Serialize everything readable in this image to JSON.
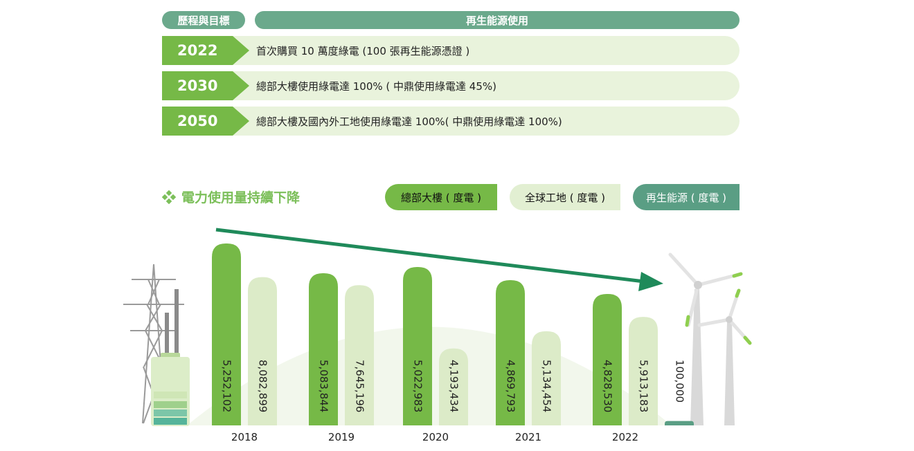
{
  "table": {
    "header_left": "歷程與目標",
    "header_right": "再生能源使用",
    "rows": [
      {
        "year": "2022",
        "text": "首次購買 10 萬度綠電 (100 張再生能源憑證 )"
      },
      {
        "year": "2030",
        "text": "總部大樓使用綠電達 100% ( 中鼎使用綠電達 45%)"
      },
      {
        "year": "2050",
        "text": "總部大樓及國內外工地使用綠電達 100%( 中鼎使用綠電達 100%)"
      }
    ]
  },
  "section_title": "電力使用量持續下降",
  "colors": {
    "hq": "#76b947",
    "site": "#dcebc8",
    "renewable": "#5a9e84",
    "arrow": "#1f8a5a",
    "header": "#6ba98c",
    "row_bg": "#e9f3dc"
  },
  "icons": [
    "diamond-bullet-icon",
    "power-tower-icon",
    "battery-icon",
    "wind-turbine-icon",
    "trend-arrow-icon"
  ],
  "chart_data": {
    "type": "bar",
    "categories": [
      "2018",
      "2019",
      "2020",
      "2021",
      "2022"
    ],
    "series": [
      {
        "name": "總部大樓 ( 度電 )",
        "values": [
          5252102,
          5083844,
          5022983,
          4869793,
          4828530
        ],
        "labels": [
          "5,252,102",
          "5,083,844",
          "5,022,983",
          "4,869,793",
          "4,828,530"
        ]
      },
      {
        "name": "全球工地 ( 度電 )",
        "values": [
          8082899,
          7645196,
          4193434,
          5134454,
          5913183
        ],
        "labels": [
          "8,082,899",
          "7,645,196",
          "4,193,434",
          "5,134,454",
          "5,913,183"
        ]
      },
      {
        "name": "再生能源 ( 度電 )",
        "values": [
          null,
          null,
          null,
          null,
          100000
        ],
        "labels": [
          "",
          "",
          "",
          "",
          "100,000"
        ]
      }
    ],
    "legend_position": "top-right",
    "grid": false
  }
}
